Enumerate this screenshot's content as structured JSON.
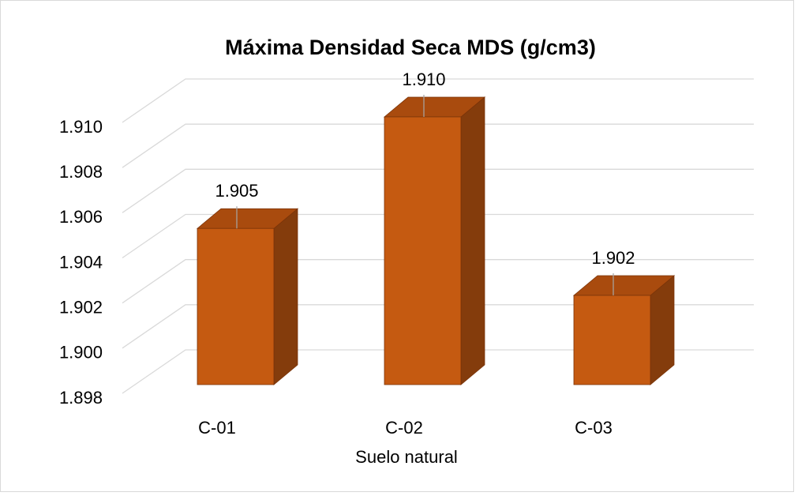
{
  "chart_data": {
    "type": "bar3d",
    "title": "Máxima Densidad Seca MDS (g/cm3)",
    "categories": [
      "C-01",
      "C-02",
      "C-03"
    ],
    "values": [
      1.905,
      1.91,
      1.902
    ],
    "value_labels": [
      "1.905",
      "1.910",
      "1.902"
    ],
    "color": "#c55a11",
    "x_label": "Suelo natural",
    "ylim": [
      1.898,
      1.91
    ],
    "yticks": [
      1.898,
      {
        "value": 1.9,
        "label": "1.900"
      },
      1.902,
      1.904,
      1.906,
      1.908,
      {
        "value": 1.91,
        "label": "1.910"
      }
    ],
    "grid": true
  }
}
